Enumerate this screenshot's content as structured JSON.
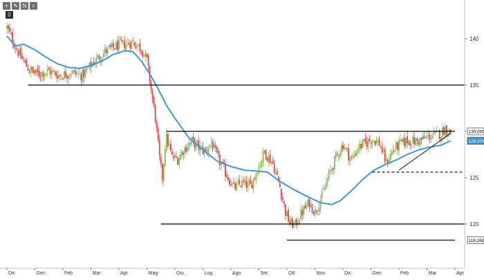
{
  "toolbar": {
    "buttons": [
      {
        "name": "crosshair-icon",
        "glyph": "+"
      },
      {
        "name": "pencil-icon",
        "glyph": "✎"
      },
      {
        "name": "text-tool-icon",
        "glyph": "N"
      },
      {
        "name": "zoom-icon",
        "glyph": "⌕"
      }
    ],
    "counter": "0"
  },
  "colors": {
    "up_candle": "#7cc04a",
    "down_candle": "#e0434b",
    "moving_average": "#3a97e0",
    "annotation_line": "#000000",
    "price_tag_bg": "#ffffff",
    "ma_tag_bg": "#3a97e0",
    "grid": "#e9e9e9"
  },
  "chart_data": {
    "type": "candlestick",
    "title": "",
    "xlabel": "",
    "ylabel": "",
    "x_tick_labels": [
      "Dic",
      "Gen",
      "Feb",
      "Mar",
      "Apr",
      "Mag",
      "Giu",
      "Lug",
      "Ago",
      "Set",
      "Ott",
      "Nov",
      "Dic",
      "Gen",
      "Feb",
      "Mar",
      "Apr"
    ],
    "y_ticks": [
      120,
      125,
      130,
      135,
      140
    ],
    "ylim": [
      117,
      142.5
    ],
    "axis_position": "right",
    "grid": false,
    "price_anchors": [
      [
        0,
        141.2
      ],
      [
        0.25,
        139.5
      ],
      [
        0.5,
        138.0
      ],
      [
        0.8,
        136.6
      ],
      [
        1.1,
        136.2
      ],
      [
        1.5,
        136.5
      ],
      [
        1.9,
        136.0
      ],
      [
        2.3,
        136.4
      ],
      [
        2.7,
        136.0
      ],
      [
        3.1,
        137.5
      ],
      [
        3.5,
        138.6
      ],
      [
        4.0,
        139.3
      ],
      [
        4.5,
        139.6
      ],
      [
        4.8,
        139.0
      ],
      [
        5.0,
        137.7
      ],
      [
        5.15,
        134.5
      ],
      [
        5.3,
        131.5
      ],
      [
        5.45,
        127.0
      ],
      [
        5.55,
        125.0
      ],
      [
        5.68,
        129.5
      ],
      [
        5.9,
        127.2
      ],
      [
        6.1,
        127.0
      ],
      [
        6.3,
        128.0
      ],
      [
        6.6,
        128.9
      ],
      [
        6.85,
        128.3
      ],
      [
        7.1,
        127.8
      ],
      [
        7.3,
        128.8
      ],
      [
        7.5,
        127.3
      ],
      [
        7.8,
        125.6
      ],
      [
        8.1,
        123.9
      ],
      [
        8.4,
        124.4
      ],
      [
        8.7,
        124.1
      ],
      [
        9.0,
        126.3
      ],
      [
        9.2,
        127.8
      ],
      [
        9.5,
        126.5
      ],
      [
        9.75,
        124.0
      ],
      [
        9.95,
        121.3
      ],
      [
        10.1,
        120.1
      ],
      [
        10.3,
        119.9
      ],
      [
        10.5,
        121.1
      ],
      [
        10.8,
        122.3
      ],
      [
        11.0,
        121.3
      ],
      [
        11.25,
        123.0
      ],
      [
        11.5,
        125.3
      ],
      [
        11.8,
        127.5
      ],
      [
        12.0,
        128.6
      ],
      [
        12.3,
        126.9
      ],
      [
        12.55,
        128.3
      ],
      [
        12.85,
        128.8
      ],
      [
        13.05,
        129.2
      ],
      [
        13.3,
        128.7
      ],
      [
        13.55,
        126.6
      ],
      [
        13.75,
        127.8
      ],
      [
        14.0,
        128.6
      ],
      [
        14.3,
        129.0
      ],
      [
        14.6,
        128.9
      ],
      [
        14.9,
        129.2
      ],
      [
        15.1,
        129.5
      ],
      [
        15.3,
        129.6
      ],
      [
        15.5,
        129.8
      ],
      [
        15.65,
        130.3
      ],
      [
        15.78,
        130.0
      ],
      [
        15.85,
        129.95
      ]
    ],
    "moving_average": [
      [
        0,
        140.3
      ],
      [
        0.3,
        139.2
      ],
      [
        0.6,
        139.4
      ],
      [
        1.0,
        138.8
      ],
      [
        1.4,
        138.0
      ],
      [
        1.8,
        137.3
      ],
      [
        2.2,
        136.9
      ],
      [
        2.6,
        136.8
      ],
      [
        3.0,
        137.1
      ],
      [
        3.4,
        137.6
      ],
      [
        3.8,
        138.3
      ],
      [
        4.2,
        138.7
      ],
      [
        4.5,
        138.6
      ],
      [
        4.8,
        137.6
      ],
      [
        5.1,
        136.2
      ],
      [
        5.4,
        134.6
      ],
      [
        5.7,
        132.8
      ],
      [
        6.0,
        131.4
      ],
      [
        6.5,
        129.3
      ],
      [
        7.0,
        128.0
      ],
      [
        7.5,
        126.8
      ],
      [
        8.0,
        126.2
      ],
      [
        8.5,
        125.8
      ],
      [
        9.0,
        125.7
      ],
      [
        9.3,
        125.6
      ],
      [
        9.7,
        124.7
      ],
      [
        10.2,
        123.8
      ],
      [
        10.7,
        123.0
      ],
      [
        11.2,
        122.3
      ],
      [
        11.6,
        122.1
      ],
      [
        11.9,
        122.5
      ],
      [
        12.3,
        123.6
      ],
      [
        12.7,
        124.8
      ],
      [
        13.1,
        125.8
      ],
      [
        13.5,
        126.4
      ],
      [
        13.9,
        126.9
      ],
      [
        14.3,
        127.5
      ],
      [
        14.7,
        128.0
      ],
      [
        15.1,
        128.3
      ],
      [
        15.5,
        128.5
      ],
      [
        15.85,
        128.98
      ]
    ],
    "support_resistance_lines": [
      {
        "y": 135.0,
        "x_start": 0.75,
        "x_end": 17.0,
        "style": "solid"
      },
      {
        "y": 130.0,
        "x_start": 5.7,
        "x_end": 16.0,
        "style": "solid"
      },
      {
        "y": 120.0,
        "x_start": 5.5,
        "x_end": 17.0,
        "style": "solid"
      },
      {
        "y": 118.26,
        "x_start": 10.0,
        "x_end": 16.0,
        "style": "solid"
      },
      {
        "y": 125.6,
        "x_start": 13.05,
        "x_end": 17.0,
        "style": "dashed"
      }
    ],
    "trendline": {
      "from": [
        14.0,
        125.8
      ],
      "to": [
        15.85,
        129.8
      ]
    },
    "value_labels": [
      {
        "text": "130,0000",
        "y": 130.0,
        "type": "price"
      },
      {
        "text": "128,9780",
        "y": 128.978,
        "type": "moving_average"
      },
      {
        "text": "118,2600",
        "y": 118.26,
        "type": "level"
      }
    ]
  }
}
